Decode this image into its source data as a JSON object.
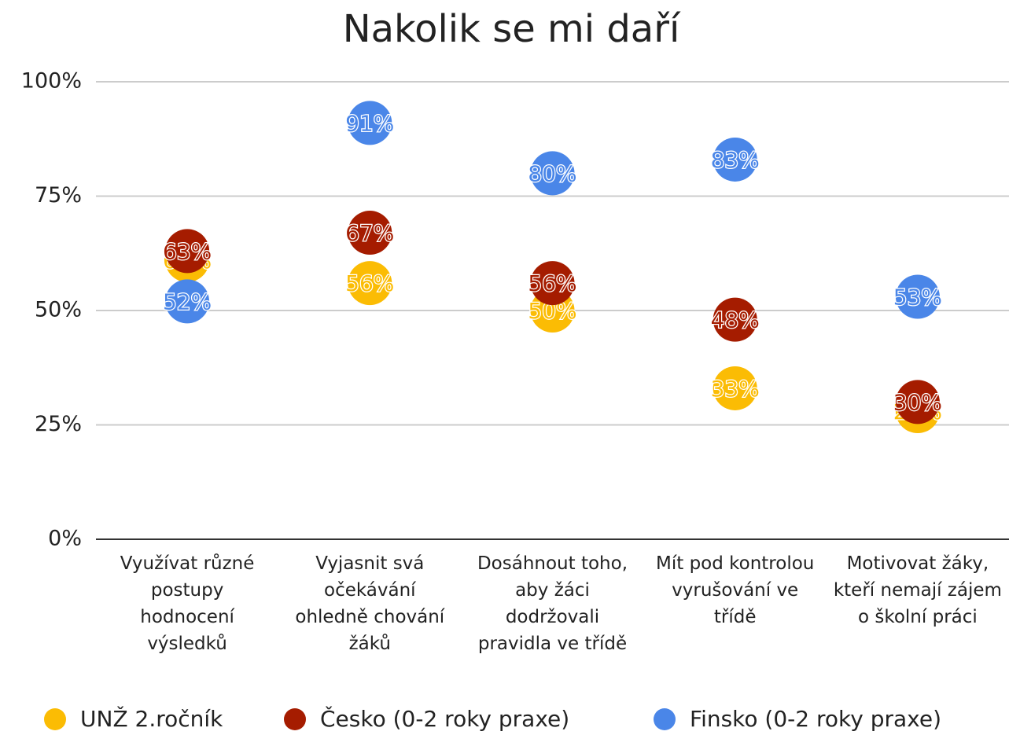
{
  "chart_data": {
    "type": "scatter",
    "title": "Nakolik se mi daří",
    "categories": [
      "Využívat různé postupy hodnocení výsledků",
      "Vyjasnit svá očekávání ohledně chování žáků",
      "Dosáhnout toho, aby žáci dodržovali pravidla ve třídě",
      "Mít pod kontrolou vyrušování ve třídě",
      "Motivovat žáky, kteří nemají zájem o školní práci"
    ],
    "series": [
      {
        "name": "UNŽ 2.ročník",
        "color": "#fbbc04",
        "values": [
          61,
          56,
          50,
          33,
          28
        ],
        "value_labels": [
          "61%",
          "56%",
          "50%",
          "33%",
          "28%"
        ]
      },
      {
        "name": "Česko (0-2 roky praxe)",
        "color": "#a51c00",
        "values": [
          63,
          67,
          56,
          48,
          30
        ],
        "value_labels": [
          "63%",
          "67%",
          "56%",
          "48%",
          "30%"
        ]
      },
      {
        "name": "Finsko (0-2 roky praxe)",
        "color": "#4a86e8",
        "values": [
          52,
          91,
          80,
          83,
          53
        ],
        "value_labels": [
          "52%",
          "91%",
          "80%",
          "83%",
          "53%"
        ]
      }
    ],
    "ylim": [
      0,
      100
    ],
    "yticks": [
      {
        "value": 0,
        "label": "0%"
      },
      {
        "value": 25,
        "label": "25%"
      },
      {
        "value": 50,
        "label": "50%"
      },
      {
        "value": 75,
        "label": "75%"
      },
      {
        "value": 100,
        "label": "100%"
      }
    ],
    "grid": true,
    "legend": "bottom"
  }
}
